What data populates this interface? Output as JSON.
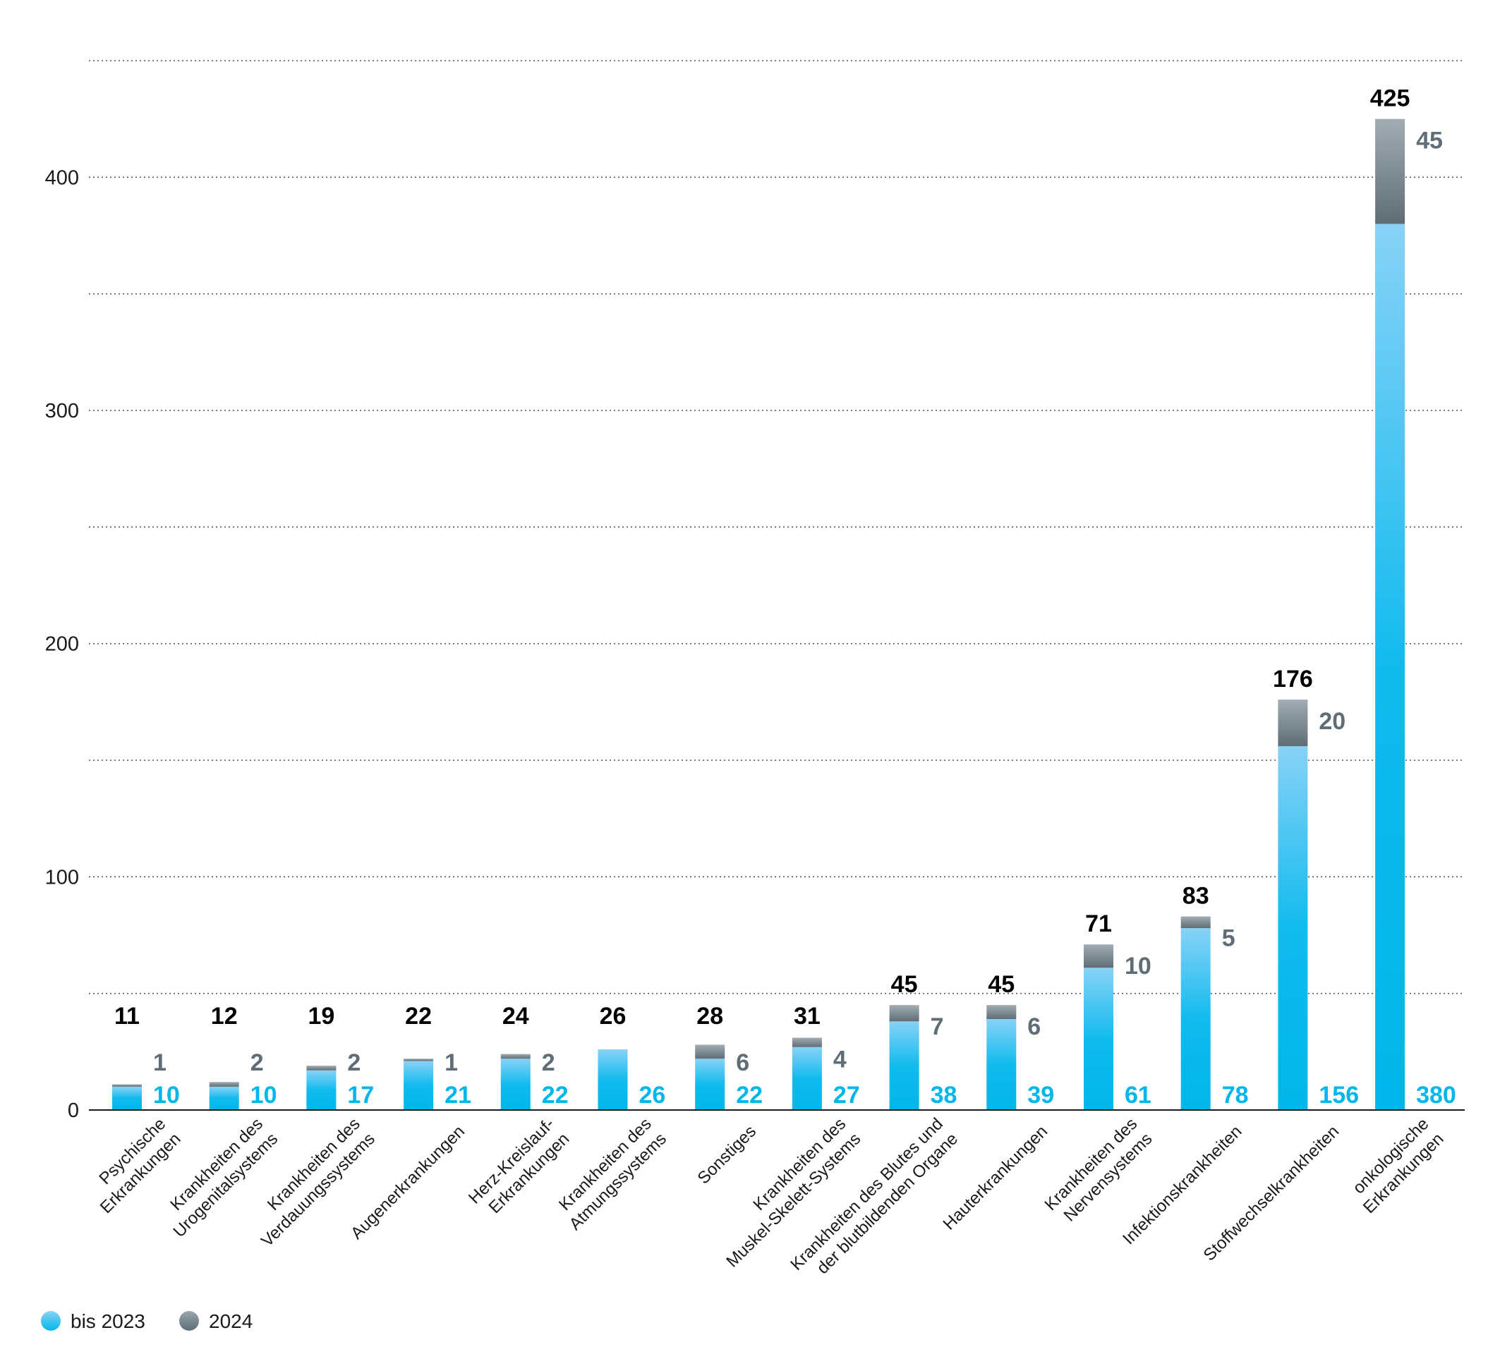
{
  "chart_data": {
    "type": "bar",
    "stacked": true,
    "categories": [
      [
        "Psychische",
        "Erkrankungen"
      ],
      [
        "Krankheiten des",
        "Urogenitalsystems"
      ],
      [
        "Krankheiten des",
        "Verdauungssystems"
      ],
      [
        "Augenerkrankungen"
      ],
      [
        "Herz-Kreislauf-",
        "Erkrankungen"
      ],
      [
        "Krankheiten des",
        "Atmungssystems"
      ],
      [
        "Sonstiges"
      ],
      [
        "Krankheiten des",
        "Muskel-Skelett-Systems"
      ],
      [
        "Krankheiten des Blutes und",
        "der blutbildenden Organe"
      ],
      [
        "Hauterkrankungen"
      ],
      [
        "Krankheiten des",
        "Nervensystems"
      ],
      [
        "Infektionskrankheiten"
      ],
      [
        "Stoffwechselkrankheiten"
      ],
      [
        "onkologische",
        "Erkrankungen"
      ]
    ],
    "series": [
      {
        "name": "bis 2023",
        "color": "#00b6ea",
        "values": [
          10,
          10,
          17,
          21,
          22,
          26,
          22,
          27,
          38,
          39,
          61,
          78,
          156,
          380
        ]
      },
      {
        "name": "2024",
        "color": "#67757e",
        "values": [
          1,
          2,
          2,
          1,
          2,
          null,
          6,
          4,
          7,
          6,
          10,
          5,
          20,
          45
        ]
      }
    ],
    "totals": [
      11,
      12,
      19,
      22,
      24,
      26,
      28,
      31,
      45,
      45,
      71,
      83,
      176,
      425
    ],
    "ylim": [
      0,
      450
    ],
    "yticks": [
      0,
      100,
      200,
      300,
      400
    ],
    "gridlines": [
      50,
      100,
      150,
      200,
      250,
      300,
      350,
      400,
      450
    ],
    "grid": true,
    "legend_position": "bottom-left",
    "title": "",
    "xlabel": "",
    "ylabel": ""
  }
}
